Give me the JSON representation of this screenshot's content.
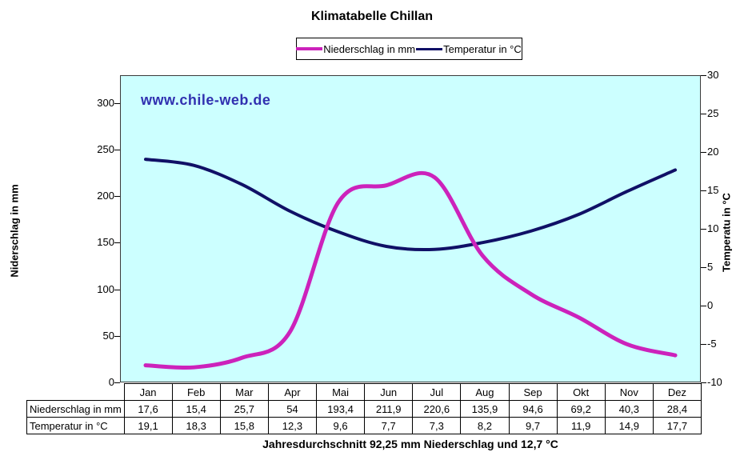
{
  "title": "Klimatabelle Chillan",
  "watermark": "www.chile-web.de",
  "caption": "Jahresdurchschnitt 92,25 mm Niederschlag und 12,7 °C",
  "legend": {
    "precip_label": "Niederschlag in mm",
    "temp_label": "Temperatur in °C"
  },
  "axes": {
    "left_title": "Niderschlag in mm",
    "right_title": "Temperatu in °C",
    "left_ticks": [
      0,
      50,
      100,
      150,
      200,
      250,
      300
    ],
    "right_ticks": [
      -10,
      -5,
      0,
      5,
      10,
      15,
      20,
      25,
      30
    ],
    "left_max": 330,
    "right_min": -10,
    "right_max": 30
  },
  "colors": {
    "plot_background": "#CCFFFF",
    "precip_line": "#CC22BB",
    "temp_line": "#101066",
    "watermark_text": "#3030B0",
    "axis": "#000000"
  },
  "chart_data": {
    "type": "line",
    "title": "Klimatabelle Chillan",
    "categories": [
      "Jan",
      "Feb",
      "Mar",
      "Apr",
      "Mai",
      "Jun",
      "Jul",
      "Aug",
      "Sep",
      "Okt",
      "Nov",
      "Dez"
    ],
    "series": [
      {
        "name": "Niederschlag in mm",
        "axis": "left",
        "color": "#CC22BB",
        "values": [
          17.6,
          15.4,
          25.7,
          54,
          193.4,
          211.9,
          220.6,
          135.9,
          94.6,
          69.2,
          40.3,
          28.4
        ]
      },
      {
        "name": "Temperatur in °C",
        "axis": "right",
        "color": "#101066",
        "values": [
          19.1,
          18.3,
          15.8,
          12.3,
          9.6,
          7.7,
          7.3,
          8.2,
          9.7,
          11.9,
          14.9,
          17.7
        ]
      }
    ],
    "ylabel_left": "Niderschlag in mm",
    "ylabel_right": "Temperatu in °C",
    "ylim_left": [
      0,
      330
    ],
    "ylim_right": [
      -10,
      30
    ],
    "grid": false,
    "legend_position": "top",
    "smoothed": true
  },
  "table": {
    "row_labels": [
      "Niederschlag in mm",
      "Temperatur in °C"
    ],
    "months": [
      "Jan",
      "Feb",
      "Mar",
      "Apr",
      "Mai",
      "Jun",
      "Jul",
      "Aug",
      "Sep",
      "Okt",
      "Nov",
      "Dez"
    ],
    "precip": [
      "17,6",
      "15,4",
      "25,7",
      "54",
      "193,4",
      "211,9",
      "220,6",
      "135,9",
      "94,6",
      "69,2",
      "40,3",
      "28,4"
    ],
    "temp": [
      "19,1",
      "18,3",
      "15,8",
      "12,3",
      "9,6",
      "7,7",
      "7,3",
      "8,2",
      "9,7",
      "11,9",
      "14,9",
      "17,7"
    ]
  }
}
